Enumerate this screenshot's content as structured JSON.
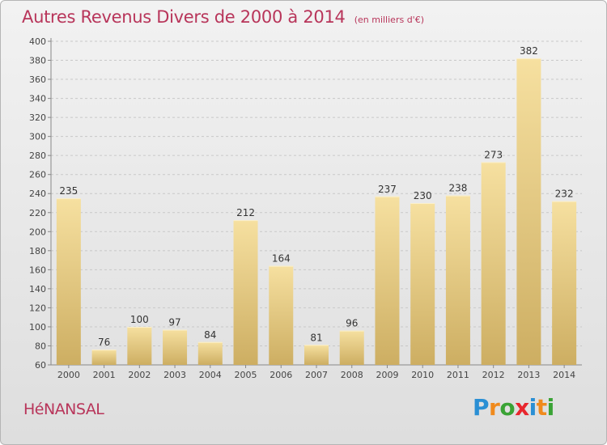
{
  "header": {
    "title": "Autres Revenus Divers de 2000 à 2014",
    "subtitle": "(en milliers d'€)"
  },
  "footer": {
    "location": "HéNANSAL",
    "logo_text": "Proxiti",
    "logo_letters": [
      {
        "ch": "P",
        "color": "#2a8fd4"
      },
      {
        "ch": "r",
        "color": "#f08a1c"
      },
      {
        "ch": "o",
        "color": "#3aa335"
      },
      {
        "ch": "x",
        "color": "#e8262d"
      },
      {
        "ch": "i",
        "color": "#2a8fd4"
      },
      {
        "ch": "t",
        "color": "#f08a1c"
      },
      {
        "ch": "i",
        "color": "#3aa335"
      }
    ]
  },
  "colors": {
    "title": "#b8355a",
    "bar_light": "#f6e0a0",
    "bar_dark": "#cdae62",
    "grid": "#c8c8c8"
  },
  "chart_data": {
    "type": "bar",
    "title": "Autres Revenus Divers de 2000 à 2014",
    "subtitle": "(en milliers d'€)",
    "xlabel": "",
    "ylabel": "",
    "categories": [
      "2000",
      "2001",
      "2002",
      "2003",
      "2004",
      "2005",
      "2006",
      "2007",
      "2008",
      "2009",
      "2010",
      "2011",
      "2012",
      "2013",
      "2014"
    ],
    "values": [
      235,
      76,
      100,
      97,
      84,
      212,
      164,
      81,
      96,
      237,
      230,
      238,
      273,
      382,
      232
    ],
    "ylim": [
      60,
      400
    ],
    "yticks": [
      60,
      80,
      100,
      120,
      140,
      160,
      180,
      200,
      220,
      240,
      260,
      280,
      300,
      320,
      340,
      360,
      380,
      400
    ],
    "grid": true,
    "data_labels": true
  }
}
